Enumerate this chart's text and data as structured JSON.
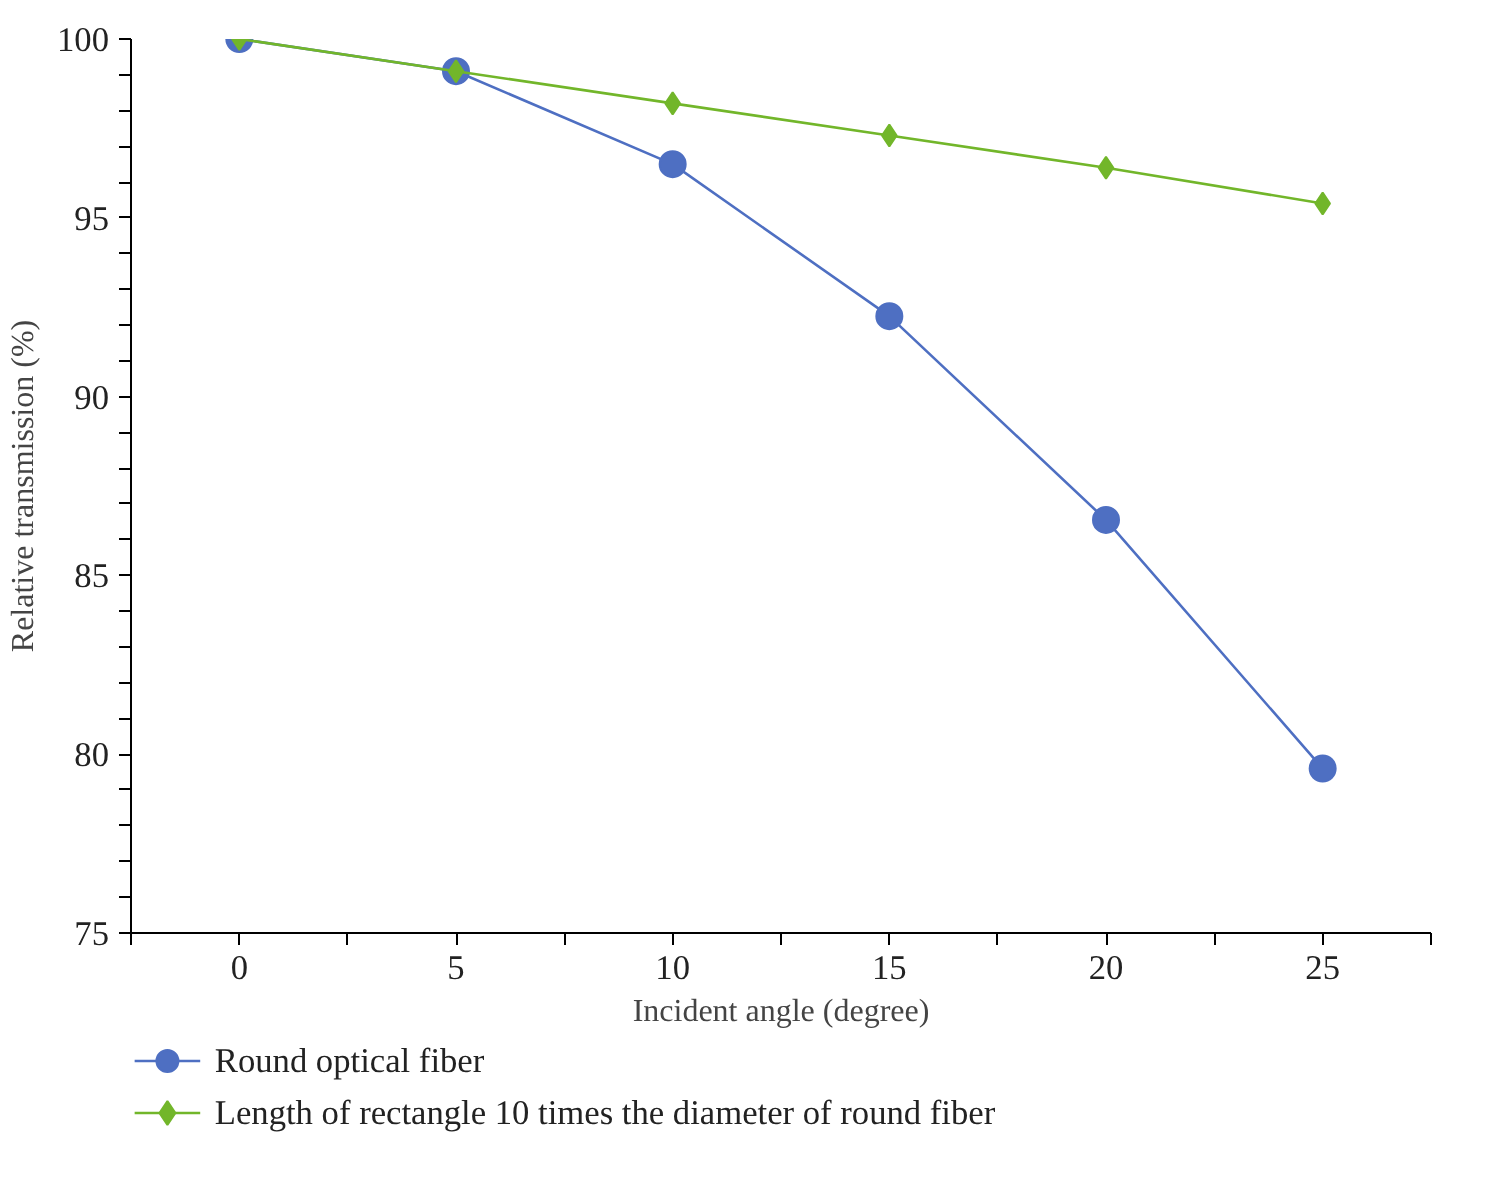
{
  "chart_data": {
    "type": "line",
    "xlabel": "Incident angle (degree)",
    "ylabel": "Relative transmission (%)",
    "x": [
      0,
      5,
      10,
      15,
      20,
      25
    ],
    "series": [
      {
        "name": "Round optical fiber",
        "color": "#4e6fc2",
        "marker": "circle",
        "values": [
          100,
          99.1,
          96.5,
          92.25,
          86.55,
          79.6
        ]
      },
      {
        "name": "Length of rectangle 10 times the diameter of round fiber",
        "color": "#72b62a",
        "marker": "diamond",
        "values": [
          100,
          99.1,
          98.2,
          97.3,
          96.4,
          95.4
        ]
      }
    ],
    "xlim": [
      -2.5,
      27.5
    ],
    "xticks": [
      {
        "value": -2.5,
        "label": null
      },
      0,
      {
        "value": 2.5,
        "label": null
      },
      5,
      {
        "value": 7.5,
        "label": null
      },
      10,
      {
        "value": 12.5,
        "label": null
      },
      15,
      {
        "value": 17.5,
        "label": null
      },
      20,
      {
        "value": 22.5,
        "label": null
      },
      25,
      {
        "value": 27.5,
        "label": null
      }
    ],
    "ylim": [
      75,
      100
    ],
    "yticks": [
      75,
      {
        "value": 76,
        "label": null
      },
      {
        "value": 77,
        "label": null
      },
      {
        "value": 78,
        "label": null
      },
      {
        "value": 79,
        "label": null
      },
      80,
      {
        "value": 81,
        "label": null
      },
      {
        "value": 82,
        "label": null
      },
      {
        "value": 83,
        "label": null
      },
      {
        "value": 84,
        "label": null
      },
      85,
      {
        "value": 86,
        "label": null
      },
      {
        "value": 87,
        "label": null
      },
      {
        "value": 88,
        "label": null
      },
      {
        "value": 89,
        "label": null
      },
      90,
      {
        "value": 91,
        "label": null
      },
      {
        "value": 92,
        "label": null
      },
      {
        "value": 93,
        "label": null
      },
      {
        "value": 94,
        "label": null
      },
      95,
      {
        "value": 96,
        "label": null
      },
      {
        "value": 97,
        "label": null
      },
      {
        "value": 98,
        "label": null
      },
      {
        "value": 99,
        "label": null
      },
      100
    ],
    "grid": false,
    "legend": "bottom left"
  }
}
